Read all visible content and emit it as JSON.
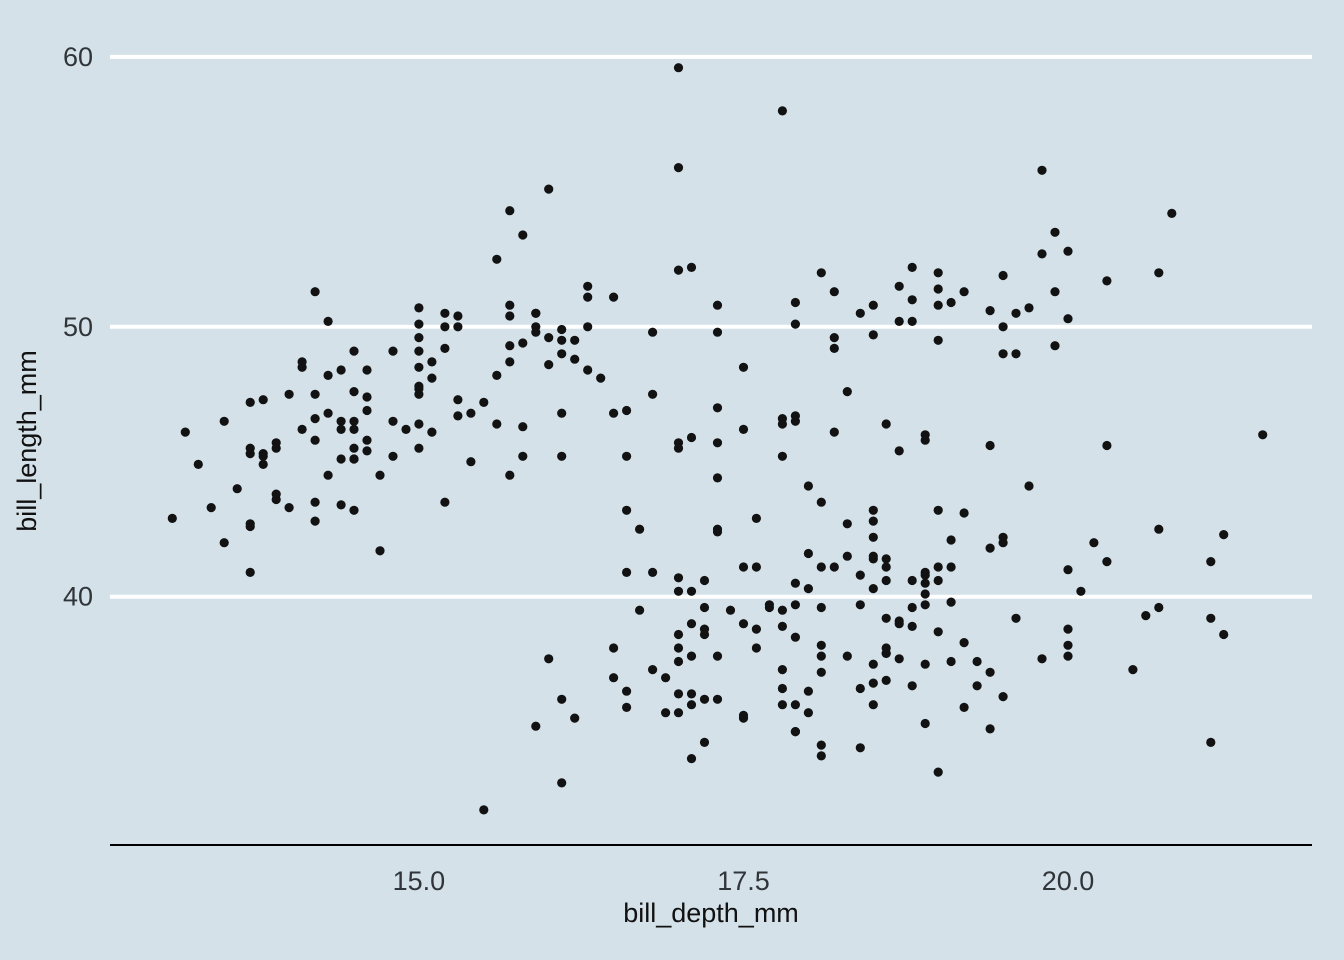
{
  "figure": {
    "background_color": "#d4e1e8"
  },
  "chart_data": {
    "type": "scatter",
    "title": "",
    "xlabel": "bill_depth_mm",
    "ylabel": "bill_length_mm",
    "xticks": [
      15.0,
      17.5,
      20.0
    ],
    "xtick_labels": [
      "15.0",
      "17.5",
      "20.0"
    ],
    "yticks": [
      40,
      50,
      60
    ],
    "ytick_labels": [
      "40",
      "50",
      "60"
    ],
    "xlim": [
      12.62,
      21.88
    ],
    "ylim": [
      30.8,
      60.7
    ],
    "grid": {
      "horizontal": true,
      "vertical": false
    },
    "legend": "none",
    "gridline_color": "#ffffff",
    "point_color": "#121212",
    "axis_line_color": "#000000",
    "points_format": "[bill_depth_mm, bill_length_mm]",
    "points": [
      [
        18.7,
        39.1
      ],
      [
        17.4,
        39.5
      ],
      [
        18.0,
        40.3
      ],
      [
        19.3,
        36.7
      ],
      [
        20.6,
        39.3
      ],
      [
        17.8,
        38.9
      ],
      [
        19.6,
        39.2
      ],
      [
        18.1,
        34.1
      ],
      [
        20.2,
        42.0
      ],
      [
        17.1,
        37.8
      ],
      [
        17.3,
        37.8
      ],
      [
        17.6,
        41.1
      ],
      [
        21.2,
        38.6
      ],
      [
        21.1,
        34.6
      ],
      [
        17.8,
        36.6
      ],
      [
        19.0,
        38.7
      ],
      [
        20.7,
        42.5
      ],
      [
        18.4,
        34.4
      ],
      [
        21.5,
        46.0
      ],
      [
        18.3,
        37.8
      ],
      [
        18.7,
        37.7
      ],
      [
        19.2,
        35.9
      ],
      [
        18.1,
        38.2
      ],
      [
        17.2,
        38.8
      ],
      [
        18.9,
        35.3
      ],
      [
        18.6,
        40.6
      ],
      [
        17.9,
        40.5
      ],
      [
        18.6,
        37.9
      ],
      [
        18.9,
        40.5
      ],
      [
        16.7,
        39.5
      ],
      [
        18.1,
        37.2
      ],
      [
        17.8,
        39.5
      ],
      [
        18.9,
        40.9
      ],
      [
        17.0,
        36.4
      ],
      [
        21.1,
        39.2
      ],
      [
        20.0,
        38.8
      ],
      [
        18.5,
        42.2
      ],
      [
        19.3,
        37.6
      ],
      [
        19.1,
        39.8
      ],
      [
        18.0,
        36.5
      ],
      [
        18.4,
        40.8
      ],
      [
        18.5,
        36.0
      ],
      [
        19.7,
        44.1
      ],
      [
        16.9,
        37.0
      ],
      [
        18.8,
        39.6
      ],
      [
        19.0,
        41.1
      ],
      [
        18.9,
        37.5
      ],
      [
        17.9,
        36.0
      ],
      [
        21.2,
        42.3
      ],
      [
        17.7,
        39.6
      ],
      [
        18.9,
        40.1
      ],
      [
        17.9,
        35.0
      ],
      [
        19.5,
        42.0
      ],
      [
        18.1,
        34.5
      ],
      [
        18.6,
        41.4
      ],
      [
        17.5,
        39.0
      ],
      [
        18.8,
        40.6
      ],
      [
        16.6,
        36.5
      ],
      [
        19.1,
        37.6
      ],
      [
        16.9,
        35.7
      ],
      [
        21.1,
        41.3
      ],
      [
        17.0,
        37.6
      ],
      [
        18.2,
        41.1
      ],
      [
        17.1,
        36.4
      ],
      [
        18.0,
        41.6
      ],
      [
        16.2,
        35.5
      ],
      [
        19.1,
        41.1
      ],
      [
        16.6,
        35.9
      ],
      [
        19.4,
        41.8
      ],
      [
        19.0,
        33.5
      ],
      [
        18.4,
        39.7
      ],
      [
        17.2,
        39.6
      ],
      [
        18.9,
        45.8
      ],
      [
        17.5,
        35.5
      ],
      [
        18.5,
        42.8
      ],
      [
        16.8,
        40.9
      ],
      [
        19.4,
        37.2
      ],
      [
        16.1,
        36.2
      ],
      [
        19.1,
        42.1
      ],
      [
        17.2,
        34.6
      ],
      [
        17.6,
        42.9
      ],
      [
        18.8,
        36.7
      ],
      [
        19.4,
        35.1
      ],
      [
        17.8,
        37.3
      ],
      [
        20.3,
        41.3
      ],
      [
        19.5,
        36.3
      ],
      [
        18.6,
        36.9
      ],
      [
        19.2,
        38.3
      ],
      [
        18.8,
        38.9
      ],
      [
        18.0,
        35.7
      ],
      [
        18.1,
        41.1
      ],
      [
        17.1,
        34.0
      ],
      [
        18.1,
        39.6
      ],
      [
        17.3,
        36.2
      ],
      [
        18.9,
        40.8
      ],
      [
        18.6,
        38.1
      ],
      [
        18.5,
        40.3
      ],
      [
        16.1,
        33.1
      ],
      [
        18.5,
        43.2
      ],
      [
        17.9,
        35.0
      ],
      [
        20.0,
        41.0
      ],
      [
        16.0,
        37.7
      ],
      [
        20.0,
        37.8
      ],
      [
        18.6,
        37.9
      ],
      [
        18.9,
        39.7
      ],
      [
        17.2,
        38.6
      ],
      [
        20.0,
        38.2
      ],
      [
        17.0,
        38.1
      ],
      [
        19.0,
        43.2
      ],
      [
        16.5,
        38.1
      ],
      [
        20.3,
        45.6
      ],
      [
        17.7,
        39.7
      ],
      [
        19.5,
        42.2
      ],
      [
        20.7,
        39.6
      ],
      [
        18.3,
        42.7
      ],
      [
        17.0,
        38.6
      ],
      [
        20.5,
        37.3
      ],
      [
        17.0,
        35.7
      ],
      [
        18.6,
        41.1
      ],
      [
        17.2,
        36.2
      ],
      [
        19.8,
        37.7
      ],
      [
        17.0,
        40.2
      ],
      [
        18.5,
        41.4
      ],
      [
        15.9,
        35.2
      ],
      [
        19.0,
        40.6
      ],
      [
        17.6,
        38.8
      ],
      [
        18.3,
        41.5
      ],
      [
        17.1,
        39.0
      ],
      [
        18.0,
        44.1
      ],
      [
        17.9,
        38.5
      ],
      [
        19.2,
        43.1
      ],
      [
        18.5,
        36.8
      ],
      [
        18.5,
        37.5
      ],
      [
        17.6,
        38.1
      ],
      [
        17.5,
        41.1
      ],
      [
        17.5,
        35.6
      ],
      [
        20.1,
        40.2
      ],
      [
        16.5,
        37.0
      ],
      [
        17.9,
        39.7
      ],
      [
        17.1,
        40.2
      ],
      [
        17.2,
        40.6
      ],
      [
        15.5,
        32.1
      ],
      [
        17.0,
        40.7
      ],
      [
        16.8,
        37.3
      ],
      [
        18.7,
        39.0
      ],
      [
        18.6,
        39.2
      ],
      [
        18.4,
        36.6
      ],
      [
        17.8,
        36.0
      ],
      [
        18.1,
        37.8
      ],
      [
        17.1,
        36.0
      ],
      [
        18.5,
        41.5
      ],
      [
        13.2,
        46.1
      ],
      [
        16.3,
        50.0
      ],
      [
        14.1,
        48.7
      ],
      [
        15.2,
        50.0
      ],
      [
        14.5,
        47.6
      ],
      [
        13.5,
        46.5
      ],
      [
        14.6,
        45.4
      ],
      [
        15.3,
        46.7
      ],
      [
        13.4,
        43.3
      ],
      [
        15.4,
        46.8
      ],
      [
        13.7,
        40.9
      ],
      [
        16.1,
        49.0
      ],
      [
        13.7,
        45.5
      ],
      [
        14.6,
        48.4
      ],
      [
        14.6,
        45.8
      ],
      [
        15.7,
        49.3
      ],
      [
        13.5,
        42.0
      ],
      [
        15.2,
        49.2
      ],
      [
        14.5,
        46.2
      ],
      [
        15.1,
        48.7
      ],
      [
        14.3,
        50.2
      ],
      [
        14.5,
        45.1
      ],
      [
        14.5,
        46.5
      ],
      [
        15.8,
        46.3
      ],
      [
        13.1,
        42.9
      ],
      [
        15.1,
        46.1
      ],
      [
        14.3,
        44.5
      ],
      [
        15.0,
        47.8
      ],
      [
        14.3,
        48.2
      ],
      [
        15.3,
        50.0
      ],
      [
        15.3,
        47.3
      ],
      [
        14.2,
        42.8
      ],
      [
        14.5,
        45.1
      ],
      [
        17.0,
        59.6
      ],
      [
        14.8,
        49.1
      ],
      [
        16.3,
        48.4
      ],
      [
        13.7,
        42.6
      ],
      [
        17.3,
        44.4
      ],
      [
        13.6,
        44.0
      ],
      [
        15.7,
        48.7
      ],
      [
        13.7,
        42.7
      ],
      [
        16.0,
        49.6
      ],
      [
        13.7,
        45.3
      ],
      [
        15.0,
        49.6
      ],
      [
        15.9,
        50.5
      ],
      [
        13.9,
        43.6
      ],
      [
        13.9,
        45.5
      ],
      [
        15.9,
        50.5
      ],
      [
        13.3,
        44.9
      ],
      [
        15.8,
        45.2
      ],
      [
        14.2,
        46.6
      ],
      [
        14.1,
        48.5
      ],
      [
        14.4,
        45.1
      ],
      [
        15.0,
        50.1
      ],
      [
        14.4,
        46.5
      ],
      [
        15.4,
        45.0
      ],
      [
        13.9,
        43.8
      ],
      [
        15.0,
        45.5
      ],
      [
        14.5,
        43.2
      ],
      [
        15.3,
        50.4
      ],
      [
        13.8,
        45.3
      ],
      [
        14.9,
        46.2
      ],
      [
        13.9,
        45.7
      ],
      [
        15.7,
        54.3
      ],
      [
        14.2,
        45.8
      ],
      [
        16.8,
        49.8
      ],
      [
        14.4,
        46.2
      ],
      [
        16.2,
        49.5
      ],
      [
        14.2,
        43.5
      ],
      [
        15.0,
        50.7
      ],
      [
        15.0,
        47.7
      ],
      [
        15.6,
        46.4
      ],
      [
        15.6,
        48.2
      ],
      [
        14.8,
        46.5
      ],
      [
        15.0,
        46.4
      ],
      [
        16.0,
        48.6
      ],
      [
        14.2,
        47.5
      ],
      [
        16.3,
        51.1
      ],
      [
        13.8,
        45.2
      ],
      [
        16.1,
        45.2
      ],
      [
        14.5,
        49.1
      ],
      [
        15.6,
        52.5
      ],
      [
        14.6,
        47.4
      ],
      [
        15.9,
        50.0
      ],
      [
        13.8,
        44.9
      ],
      [
        17.3,
        50.8
      ],
      [
        14.4,
        43.4
      ],
      [
        14.2,
        51.3
      ],
      [
        14.0,
        47.5
      ],
      [
        17.0,
        52.1
      ],
      [
        15.0,
        47.5
      ],
      [
        17.1,
        52.2
      ],
      [
        14.5,
        45.5
      ],
      [
        16.1,
        49.5
      ],
      [
        14.7,
        44.5
      ],
      [
        15.7,
        50.8
      ],
      [
        15.8,
        49.4
      ],
      [
        14.6,
        46.9
      ],
      [
        14.4,
        48.4
      ],
      [
        16.5,
        51.1
      ],
      [
        15.0,
        48.5
      ],
      [
        17.0,
        55.9
      ],
      [
        15.5,
        47.2
      ],
      [
        15.0,
        49.1
      ],
      [
        13.8,
        47.3
      ],
      [
        16.1,
        46.8
      ],
      [
        14.7,
        41.7
      ],
      [
        15.8,
        53.4
      ],
      [
        14.0,
        43.3
      ],
      [
        15.1,
        48.1
      ],
      [
        15.2,
        50.5
      ],
      [
        15.9,
        49.8
      ],
      [
        15.2,
        43.5
      ],
      [
        16.3,
        51.5
      ],
      [
        14.1,
        46.2
      ],
      [
        16.0,
        55.1
      ],
      [
        15.7,
        44.5
      ],
      [
        16.2,
        48.8
      ],
      [
        13.7,
        47.2
      ],
      [
        14.3,
        46.8
      ],
      [
        15.7,
        50.4
      ],
      [
        14.8,
        45.2
      ],
      [
        16.1,
        49.9
      ],
      [
        17.9,
        46.5
      ],
      [
        19.5,
        50.0
      ],
      [
        19.2,
        51.3
      ],
      [
        18.7,
        45.4
      ],
      [
        19.8,
        52.7
      ],
      [
        17.8,
        45.2
      ],
      [
        18.2,
        46.1
      ],
      [
        18.2,
        51.3
      ],
      [
        18.9,
        46.0
      ],
      [
        19.9,
        51.3
      ],
      [
        17.8,
        46.6
      ],
      [
        20.3,
        51.7
      ],
      [
        17.3,
        47.0
      ],
      [
        18.1,
        52.0
      ],
      [
        17.1,
        45.9
      ],
      [
        19.6,
        50.5
      ],
      [
        20.0,
        50.3
      ],
      [
        17.8,
        58.0
      ],
      [
        18.6,
        46.4
      ],
      [
        18.2,
        49.2
      ],
      [
        17.3,
        42.4
      ],
      [
        17.5,
        48.5
      ],
      [
        16.6,
        43.2
      ],
      [
        19.4,
        50.6
      ],
      [
        17.9,
        46.7
      ],
      [
        19.0,
        52.0
      ],
      [
        18.4,
        50.5
      ],
      [
        19.0,
        49.5
      ],
      [
        17.8,
        46.4
      ],
      [
        20.0,
        52.8
      ],
      [
        16.6,
        40.9
      ],
      [
        20.8,
        54.2
      ],
      [
        16.7,
        42.5
      ],
      [
        18.8,
        51.0
      ],
      [
        18.5,
        49.7
      ],
      [
        16.8,
        47.5
      ],
      [
        18.3,
        47.6
      ],
      [
        20.7,
        52.0
      ],
      [
        16.6,
        46.9
      ],
      [
        19.9,
        53.5
      ],
      [
        19.5,
        49.0
      ],
      [
        17.5,
        46.2
      ],
      [
        19.1,
        50.9
      ],
      [
        17.0,
        45.5
      ],
      [
        17.9,
        50.9
      ],
      [
        18.5,
        50.8
      ],
      [
        17.9,
        50.1
      ],
      [
        19.6,
        49.0
      ],
      [
        18.7,
        51.5
      ],
      [
        17.3,
        49.8
      ],
      [
        16.4,
        48.1
      ],
      [
        19.0,
        51.4
      ],
      [
        17.3,
        45.7
      ],
      [
        19.7,
        50.7
      ],
      [
        17.3,
        42.5
      ],
      [
        18.8,
        52.2
      ],
      [
        16.6,
        45.2
      ],
      [
        19.9,
        49.3
      ],
      [
        18.8,
        50.2
      ],
      [
        19.4,
        45.6
      ],
      [
        19.5,
        51.9
      ],
      [
        16.5,
        46.8
      ],
      [
        17.0,
        45.7
      ],
      [
        19.8,
        55.8
      ],
      [
        18.1,
        43.5
      ],
      [
        18.2,
        49.6
      ],
      [
        19.0,
        50.8
      ],
      [
        18.7,
        50.2
      ]
    ]
  }
}
